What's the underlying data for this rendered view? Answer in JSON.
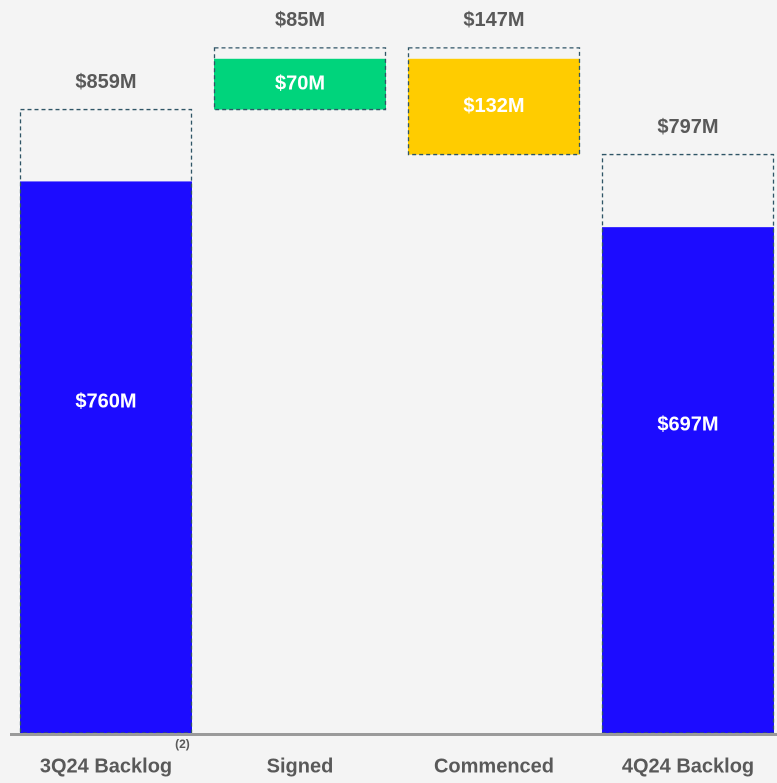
{
  "chart_data": {
    "type": "waterfall",
    "categories": [
      "3Q24 Backlog",
      "Signed",
      "Commenced",
      "4Q24 Backlog"
    ],
    "category_notes": [
      "(2)",
      null,
      null,
      null
    ],
    "measure": [
      "total",
      "increase",
      "decrease",
      "total"
    ],
    "colors": [
      "#1c0cff",
      "#00d47c",
      "#ffcc00",
      "#1c0cff"
    ],
    "outline_color": "#2f5566",
    "series": [
      {
        "values": [
          760,
          70,
          132,
          697
        ],
        "value_labels": [
          "$760M",
          "$70M",
          "$132M",
          "$697M"
        ]
      },
      {
        "values": [
          859,
          85,
          147,
          797
        ],
        "value_labels": [
          "$859M",
          "$85M",
          "$147M",
          "$797M"
        ]
      }
    ],
    "ylim": [
      0,
      1010
    ]
  }
}
